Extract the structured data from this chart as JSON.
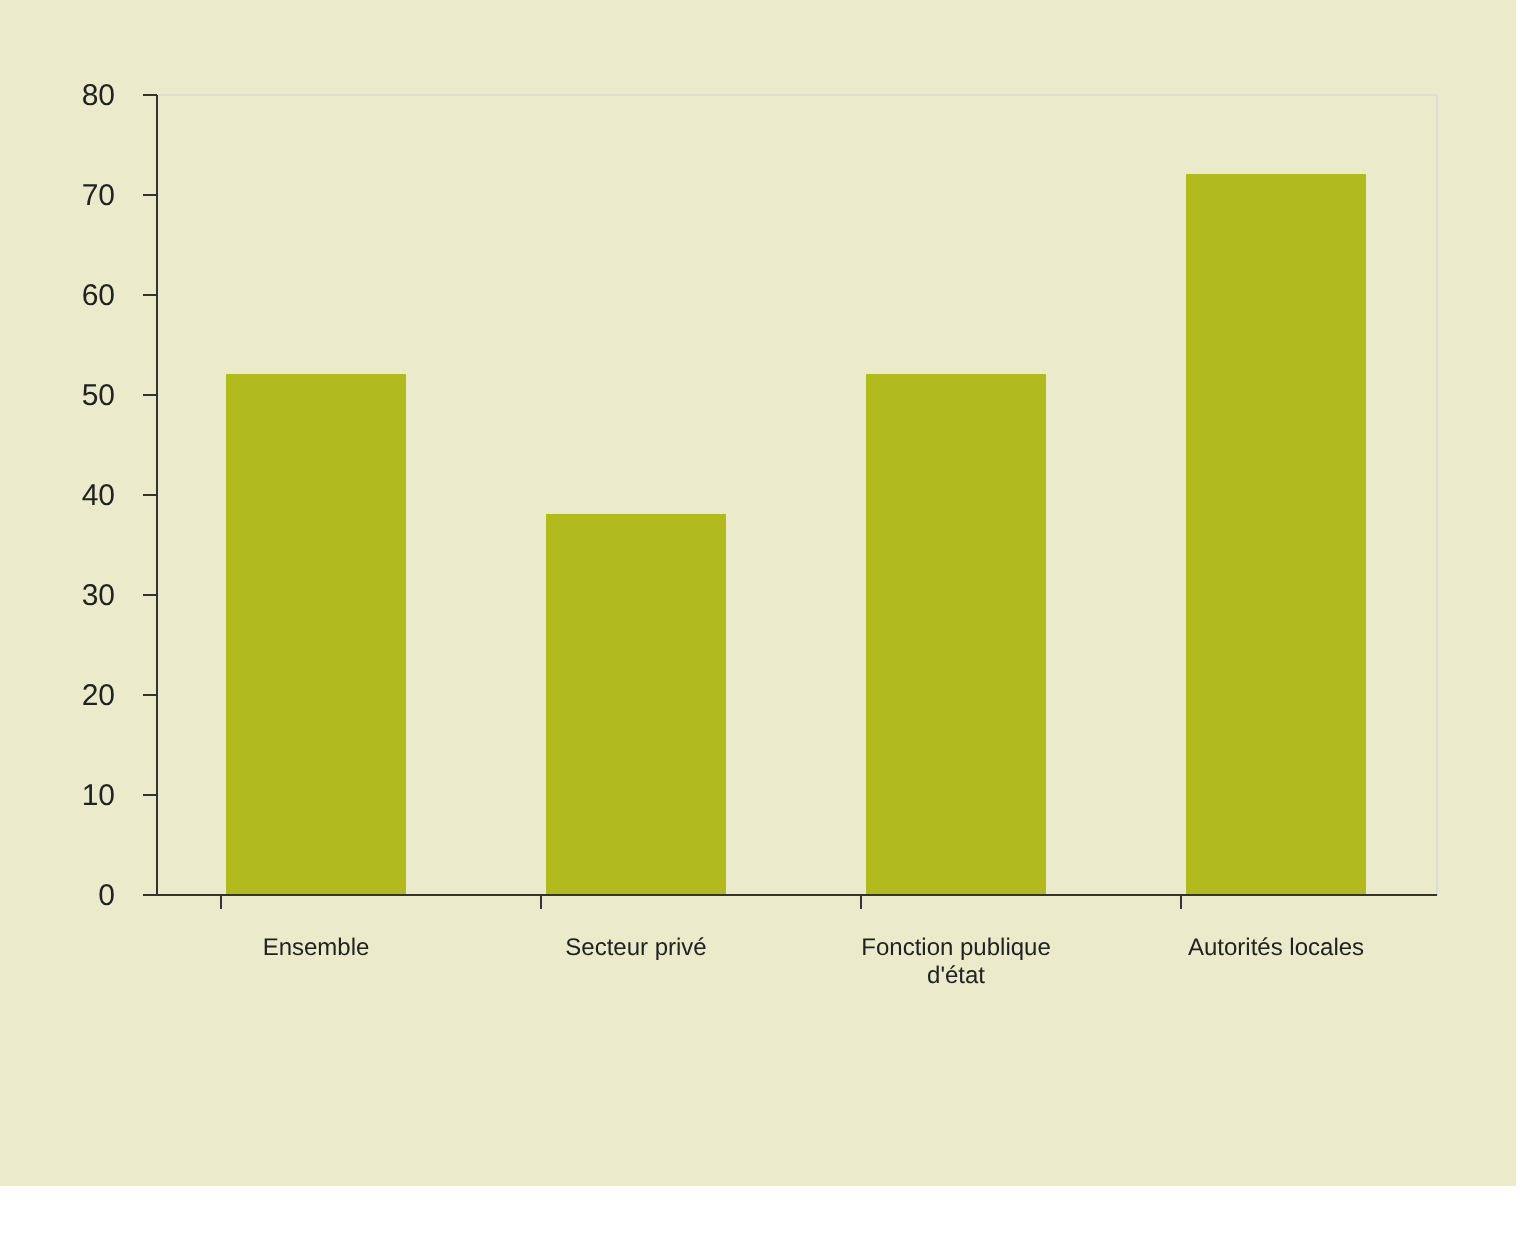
{
  "chart_data": {
    "type": "bar",
    "categories": [
      "Ensemble",
      "Secteur privé",
      "Fonction publique d'état",
      "Autorités locales"
    ],
    "values": [
      52,
      38,
      52,
      72
    ],
    "color": "#b2bb1e",
    "ylim": [
      0,
      80
    ],
    "yticks": [
      0,
      10,
      20,
      30,
      40,
      50,
      60,
      70,
      80
    ],
    "grid": false
  }
}
